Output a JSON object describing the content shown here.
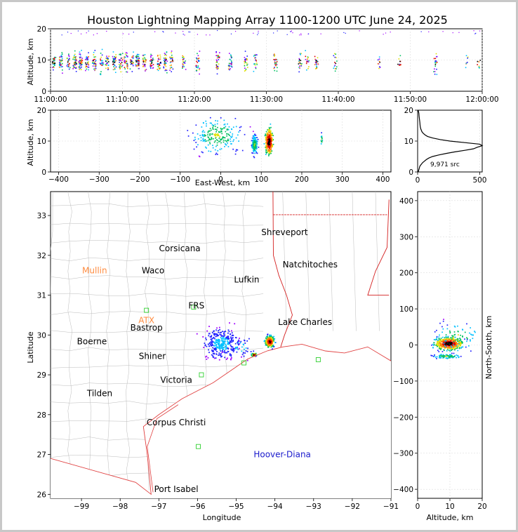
{
  "title": "Houston Lightning Mapping Array 1100-1200 UTC June 24, 2025",
  "colors": {
    "frame_bg": "#c8c8c8",
    "axes_bg": "#ffffff",
    "grid": "#dddddd",
    "county_lines": "#bbbbbb",
    "state_lines": "#d42020",
    "coast": "#e04040",
    "station_orange": "#ff8c40",
    "station_blue": "#1a1acc",
    "density_scale": [
      "#a000ff",
      "#2020ff",
      "#00c0ff",
      "#00c060",
      "#e0e000",
      "#ff8000",
      "#e00000",
      "#000000"
    ]
  },
  "chart_data": [
    {
      "id": "time-altitude",
      "type": "scatter",
      "ylabel": "Altitude, km",
      "ylim": [
        0,
        20
      ],
      "yticks": [
        "0",
        "10",
        "20"
      ],
      "xlim_minutes": [
        0,
        60
      ],
      "xticks": [
        "11:00:00",
        "11:10:00",
        "11:20:00",
        "11:30:00",
        "11:40:00",
        "11:50:00",
        "12:00:00"
      ],
      "columns": [
        {
          "t": 0.4,
          "n": 30
        },
        {
          "t": 1.4,
          "n": 35
        },
        {
          "t": 2.4,
          "n": 25
        },
        {
          "t": 3.3,
          "n": 40
        },
        {
          "t": 4.1,
          "n": 45
        },
        {
          "t": 5.0,
          "n": 30
        },
        {
          "t": 6.0,
          "n": 35
        },
        {
          "t": 7.0,
          "n": 25
        },
        {
          "t": 7.8,
          "n": 30
        },
        {
          "t": 8.8,
          "n": 35
        },
        {
          "t": 9.7,
          "n": 30
        },
        {
          "t": 10.4,
          "n": 35
        },
        {
          "t": 11.2,
          "n": 25
        },
        {
          "t": 12.0,
          "n": 40
        },
        {
          "t": 13.0,
          "n": 30
        },
        {
          "t": 14.0,
          "n": 25
        },
        {
          "t": 15.0,
          "n": 30
        },
        {
          "t": 15.9,
          "n": 35
        },
        {
          "t": 16.7,
          "n": 30
        },
        {
          "t": 18.5,
          "n": 20
        },
        {
          "t": 20.4,
          "n": 25
        },
        {
          "t": 23.2,
          "n": 35
        },
        {
          "t": 24.9,
          "n": 30
        },
        {
          "t": 27.1,
          "n": 25
        },
        {
          "t": 28.4,
          "n": 20
        },
        {
          "t": 31.2,
          "n": 25
        },
        {
          "t": 34.6,
          "n": 20
        },
        {
          "t": 35.6,
          "n": 15
        },
        {
          "t": 36.9,
          "n": 20
        },
        {
          "t": 39.5,
          "n": 15
        },
        {
          "t": 45.6,
          "n": 10
        },
        {
          "t": 48.4,
          "n": 10
        },
        {
          "t": 53.4,
          "n": 20
        },
        {
          "t": 57.8,
          "n": 8
        },
        {
          "t": 59.5,
          "n": 8
        }
      ]
    },
    {
      "id": "ew-altitude",
      "type": "scatter",
      "xlabel": "East-West, km",
      "ylabel": "Altitude, km",
      "xlim": [
        -420,
        420
      ],
      "ylim": [
        0,
        20
      ],
      "xticks": [
        "−400",
        "−300",
        "−200",
        "−100",
        "0",
        "100",
        "200",
        "300",
        "400"
      ],
      "yticks": [
        "0",
        "10",
        "20"
      ],
      "clusters": [
        {
          "x": -10,
          "z": 12,
          "sx": 40,
          "sz": 4,
          "n": 220
        },
        {
          "x": 82,
          "z": 9,
          "sx": 5,
          "sz": 2.2,
          "n": 150
        },
        {
          "x": 118,
          "z": 10,
          "sx": 7,
          "sz": 3,
          "n": 260
        },
        {
          "x": 248,
          "z": 10.5,
          "sx": 1.5,
          "sz": 1.3,
          "n": 16
        }
      ]
    },
    {
      "id": "altitude-histogram",
      "type": "line",
      "xlim": [
        0,
        520
      ],
      "ylim": [
        0,
        20
      ],
      "xticks": [
        "0",
        "500"
      ],
      "yticks": [
        "0",
        "10",
        "20"
      ],
      "annotation": "9,971 src",
      "altitude_km": [
        0,
        0.5,
        1,
        1.5,
        2,
        2.5,
        3,
        3.5,
        4,
        4.5,
        5,
        5.5,
        6,
        6.5,
        7,
        7.5,
        8,
        8.5,
        9,
        9.5,
        10,
        10.5,
        11,
        11.5,
        12,
        12.5,
        13,
        13.5,
        14,
        14.5,
        15,
        16,
        17,
        18,
        19,
        20
      ],
      "count": [
        5,
        8,
        12,
        15,
        20,
        30,
        40,
        55,
        70,
        90,
        120,
        170,
        230,
        300,
        380,
        450,
        480,
        520,
        500,
        380,
        260,
        180,
        120,
        80,
        60,
        45,
        35,
        30,
        25,
        22,
        20,
        18,
        15,
        12,
        10,
        5
      ]
    },
    {
      "id": "plan-view-map",
      "type": "scatter",
      "xlabel": "Longitude",
      "ylabel": "Latitude",
      "xlim": [
        -99.8,
        -91
      ],
      "ylim": [
        25.9,
        33.6
      ],
      "xticks": [
        "−99",
        "−98",
        "−97",
        "−96",
        "−95",
        "−94",
        "−93",
        "−92",
        "−91"
      ],
      "yticks": [
        "26",
        "27",
        "28",
        "29",
        "30",
        "31",
        "32",
        "33"
      ],
      "clusters": [
        {
          "lon": -95.4,
          "lat": 29.8,
          "slon": 0.3,
          "slat": 0.25,
          "n": 320
        },
        {
          "lon": -94.15,
          "lat": 29.85,
          "slon": 0.08,
          "slat": 0.1,
          "n": 260
        },
        {
          "lon": -94.55,
          "lat": 29.52,
          "slon": 0.05,
          "slat": 0.03,
          "n": 60
        },
        {
          "lon": -94.9,
          "lat": 29.7,
          "slon": 0.25,
          "slat": 0.2,
          "n": 40
        }
      ],
      "cities": [
        {
          "name": "Shreveport",
          "lon": -93.75,
          "lat": 32.58,
          "color": "#000000"
        },
        {
          "name": "Corsicana",
          "lon": -96.46,
          "lat": 32.17,
          "color": "#000000"
        },
        {
          "name": "Natchitoches",
          "lon": -93.09,
          "lat": 31.77,
          "color": "#000000"
        },
        {
          "name": "Mullin",
          "lon": -98.66,
          "lat": 31.62,
          "color": "#ff8c40"
        },
        {
          "name": "Waco",
          "lon": -97.15,
          "lat": 31.62,
          "color": "#000000"
        },
        {
          "name": "Lufkin",
          "lon": -94.73,
          "lat": 31.39,
          "color": "#000000"
        },
        {
          "name": "FRS",
          "lon": -96.03,
          "lat": 30.74,
          "color": "#000000"
        },
        {
          "name": "ATX",
          "lon": -97.32,
          "lat": 30.37,
          "color": "#ff8c40"
        },
        {
          "name": "Lake Charles",
          "lon": -93.22,
          "lat": 30.32,
          "color": "#000000"
        },
        {
          "name": "Bastrop",
          "lon": -97.32,
          "lat": 30.18,
          "color": "#000000"
        },
        {
          "name": "Boerne",
          "lon": -98.73,
          "lat": 29.84,
          "color": "#000000"
        },
        {
          "name": "Shiner",
          "lon": -97.17,
          "lat": 29.47,
          "color": "#000000"
        },
        {
          "name": "Victoria",
          "lon": -96.55,
          "lat": 28.87,
          "color": "#000000"
        },
        {
          "name": "Tilden",
          "lon": -98.53,
          "lat": 28.53,
          "color": "#000000"
        },
        {
          "name": "Corpus Christi",
          "lon": -96.55,
          "lat": 27.8,
          "color": "#000000"
        },
        {
          "name": "Hoover-Diana",
          "lon": -93.81,
          "lat": 27.0,
          "color": "#1a1acc"
        },
        {
          "name": "Port Isabel",
          "lon": -96.55,
          "lat": 26.13,
          "color": "#000000"
        }
      ]
    },
    {
      "id": "alt-ns",
      "type": "scatter",
      "xlabel": "Altitude, km",
      "ylabel": "North-South, km",
      "xlim": [
        0,
        20
      ],
      "ylim": [
        -425,
        425
      ],
      "xticks": [
        "0",
        "10",
        "20"
      ],
      "yticks": [
        "−400",
        "−300",
        "−200",
        "−100",
        "0",
        "100",
        "200",
        "300",
        "400"
      ],
      "clusters": [
        {
          "z": 9.5,
          "y": 5,
          "sz": 3,
          "sy": 12,
          "n": 420
        },
        {
          "z": 9,
          "y": -30,
          "sz": 3,
          "sy": 5,
          "n": 80
        },
        {
          "z": 12,
          "y": 25,
          "sz": 5,
          "sy": 25,
          "n": 80
        }
      ]
    }
  ]
}
